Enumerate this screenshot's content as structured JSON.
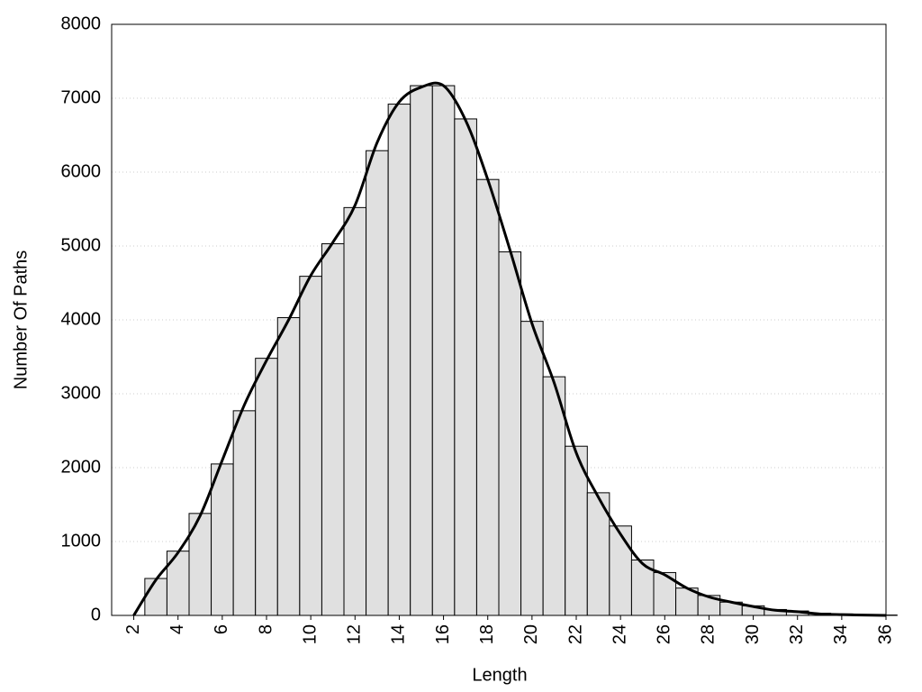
{
  "chart_data": {
    "type": "bar",
    "x": [
      2,
      3,
      4,
      5,
      6,
      7,
      8,
      9,
      10,
      11,
      12,
      13,
      14,
      15,
      16,
      17,
      18,
      19,
      20,
      21,
      22,
      23,
      24,
      25,
      26,
      27,
      28,
      29,
      30,
      31,
      32,
      33,
      34,
      35,
      36
    ],
    "series": [
      {
        "type": "bar",
        "color": "#e0e0e0",
        "values": [
          0,
          500,
          870,
          1380,
          2050,
          2770,
          3480,
          4030,
          4590,
          5030,
          5520,
          6290,
          6920,
          7170,
          7170,
          6720,
          5900,
          4920,
          3980,
          3230,
          2290,
          1660,
          1210,
          750,
          580,
          370,
          270,
          180,
          130,
          80,
          60,
          30,
          20,
          10,
          5
        ]
      },
      {
        "type": "line",
        "color": "#000000",
        "values": [
          0,
          480,
          850,
          1350,
          2100,
          2850,
          3450,
          4000,
          4600,
          5050,
          5550,
          6400,
          6950,
          7150,
          7170,
          6700,
          5900,
          4950,
          3950,
          3150,
          2200,
          1600,
          1100,
          700,
          550,
          370,
          250,
          180,
          120,
          70,
          50,
          20,
          10,
          5,
          0
        ]
      }
    ],
    "xlabel": "Length",
    "ylabel": "Number Of Paths",
    "xlim": [
      1,
      36
    ],
    "xticks": [
      2,
      4,
      6,
      8,
      10,
      12,
      14,
      16,
      18,
      20,
      22,
      24,
      26,
      28,
      30,
      32,
      34,
      36
    ],
    "ylim": [
      0,
      8000
    ],
    "yticks": [
      0,
      1000,
      2000,
      3000,
      4000,
      5000,
      6000,
      7000,
      8000
    ],
    "grid": true
  }
}
